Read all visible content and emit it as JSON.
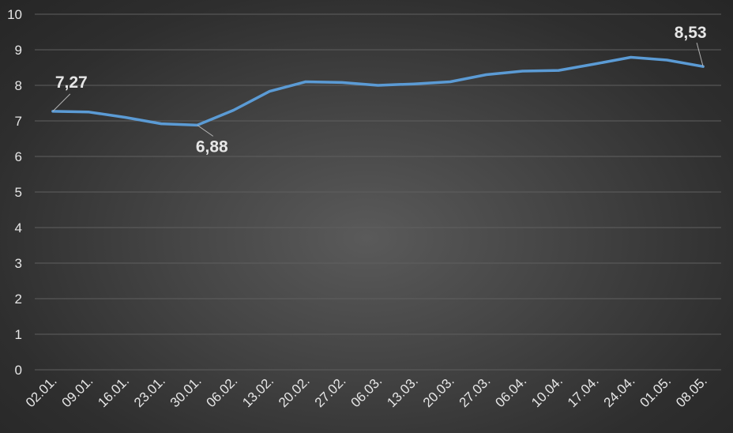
{
  "chart_data": {
    "type": "line",
    "title": "",
    "xlabel": "",
    "ylabel": "",
    "ylim": [
      0,
      10
    ],
    "yticks": [
      0,
      1,
      2,
      3,
      4,
      5,
      6,
      7,
      8,
      9,
      10
    ],
    "grid": true,
    "legend": "none",
    "categories": [
      "02.01.",
      "09.01.",
      "16.01.",
      "23.01.",
      "30.01.",
      "06.02.",
      "13.02.",
      "20.02.",
      "27.02.",
      "06.03.",
      "13.03.",
      "20.03.",
      "27.03.",
      "06.04.",
      "10.04.",
      "17.04.",
      "24.04.",
      "01.05.",
      "08.05."
    ],
    "series": [
      {
        "values": [
          7.27,
          7.25,
          7.1,
          6.92,
          6.88,
          7.3,
          7.83,
          8.1,
          8.08,
          8.0,
          8.04,
          8.1,
          8.3,
          8.4,
          8.42,
          8.6,
          8.79,
          8.71,
          8.53
        ],
        "color": "#5b9bd5"
      }
    ],
    "data_labels": [
      {
        "index": 0,
        "text": "7,27"
      },
      {
        "index": 4,
        "text": "6,88"
      },
      {
        "index": 18,
        "text": "8,53"
      }
    ],
    "colors": {
      "gridline": "#5f5f5f",
      "tick_text": "#e6e6e6",
      "leader_line": "#b4b4b4"
    }
  }
}
